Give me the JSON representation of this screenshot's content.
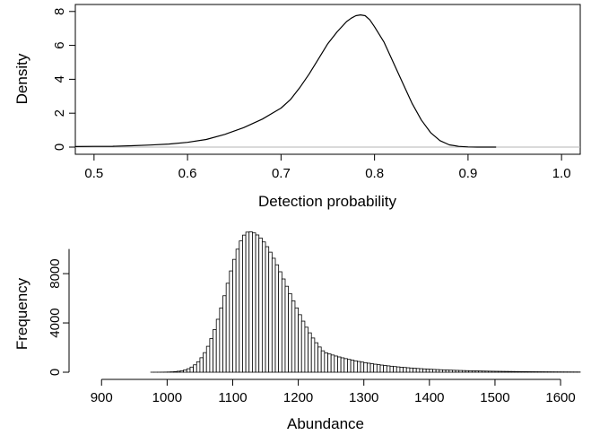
{
  "chart_data": [
    {
      "type": "line",
      "title": "",
      "xlabel": "Detection probability",
      "ylabel": "Density",
      "xlim": [
        0.48,
        1.02
      ],
      "ylim": [
        0,
        8.2
      ],
      "xticks": [
        0.5,
        0.6,
        0.7,
        0.8,
        0.9,
        1.0
      ],
      "xtick_labels": [
        "0.5",
        "0.6",
        "0.7",
        "0.8",
        "0.9",
        "1.0"
      ],
      "yticks": [
        0,
        2,
        4,
        6,
        8
      ],
      "ytick_labels": [
        "0",
        "2",
        "4",
        "6",
        "8"
      ],
      "baseline": 0,
      "x": [
        0.48,
        0.5,
        0.52,
        0.54,
        0.56,
        0.58,
        0.6,
        0.62,
        0.64,
        0.66,
        0.68,
        0.7,
        0.71,
        0.72,
        0.73,
        0.74,
        0.75,
        0.76,
        0.77,
        0.775,
        0.78,
        0.785,
        0.79,
        0.795,
        0.8,
        0.81,
        0.82,
        0.83,
        0.84,
        0.85,
        0.86,
        0.87,
        0.88,
        0.89,
        0.9,
        0.91,
        0.93
      ],
      "y": [
        0.03,
        0.04,
        0.05,
        0.08,
        0.12,
        0.18,
        0.28,
        0.45,
        0.75,
        1.15,
        1.65,
        2.3,
        2.8,
        3.5,
        4.3,
        5.2,
        6.1,
        6.8,
        7.4,
        7.6,
        7.75,
        7.8,
        7.75,
        7.5,
        7.1,
        6.2,
        5.0,
        3.8,
        2.6,
        1.6,
        0.85,
        0.38,
        0.13,
        0.04,
        0.01,
        0.0,
        0.0
      ]
    },
    {
      "type": "bar",
      "title": "",
      "xlabel": "Abundance",
      "ylabel": "Frequency",
      "xlim": [
        860,
        1630
      ],
      "ylim": [
        0,
        11500
      ],
      "xticks": [
        900,
        1000,
        1100,
        1200,
        1300,
        1400,
        1500,
        1600
      ],
      "xtick_labels": [
        "900",
        "1000",
        "1100",
        "1200",
        "1300",
        "1400",
        "1500",
        "1600"
      ],
      "yticks": [
        0,
        4000,
        8000
      ],
      "ytick_labels": [
        "0",
        "4000",
        "8000"
      ],
      "bin_width": 5,
      "bin_start": 975,
      "bin_end": 1630,
      "peak": 1125,
      "peak_value": 11400,
      "sd_left": 34,
      "sd_right_near": 58,
      "right_tail_decay": 85
    }
  ]
}
